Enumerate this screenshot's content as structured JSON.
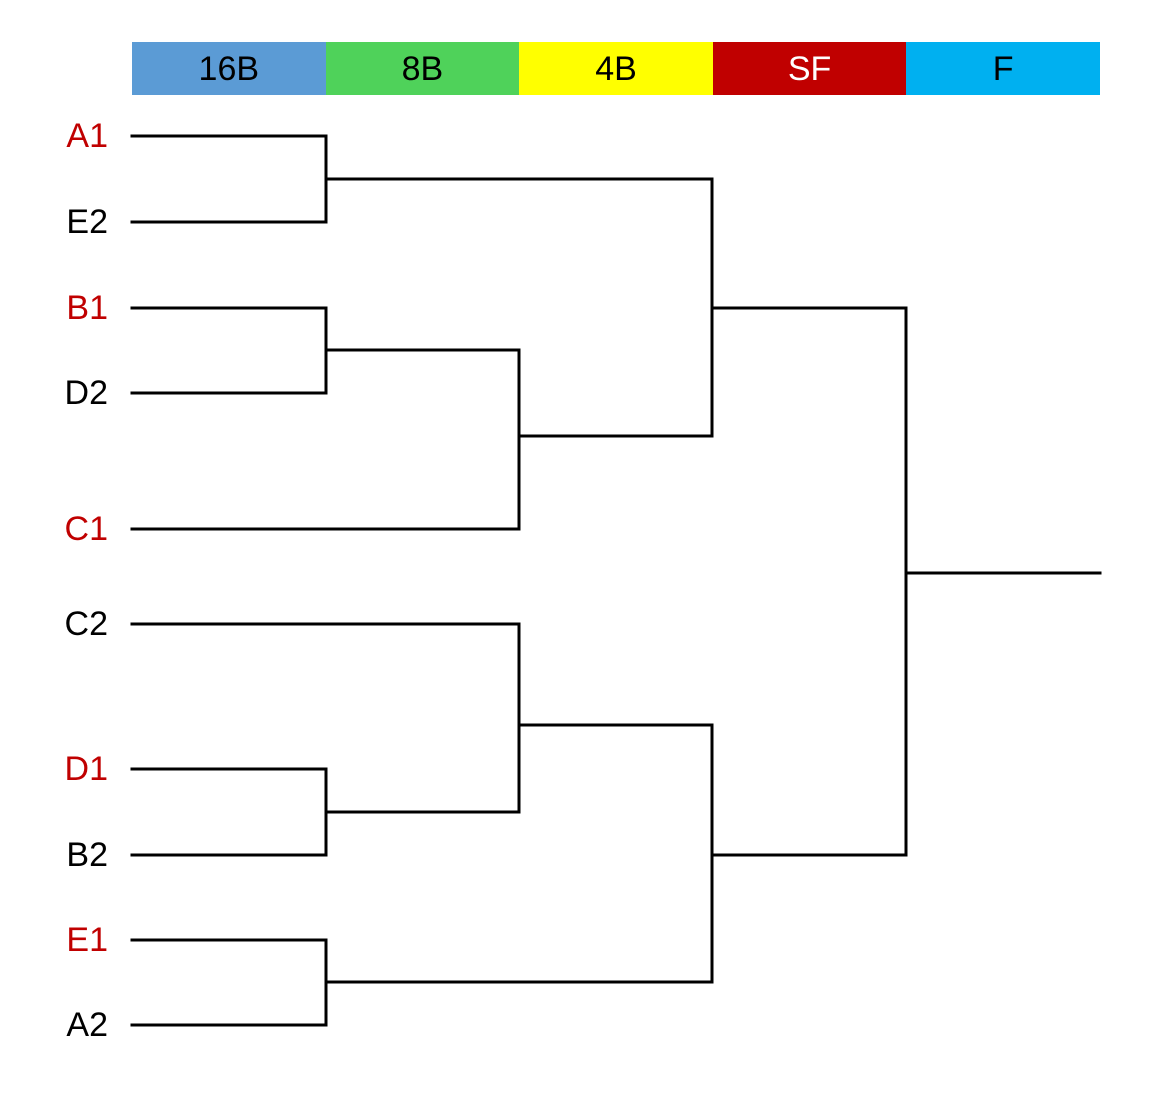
{
  "rounds": [
    {
      "label": "16B",
      "bg": "#5b9bd5",
      "fg": "#000000"
    },
    {
      "label": "8B",
      "bg": "#4fd25a",
      "fg": "#000000"
    },
    {
      "label": "4B",
      "bg": "#ffff00",
      "fg": "#000000"
    },
    {
      "label": "SF",
      "bg": "#c00000",
      "fg": "#ffffff"
    },
    {
      "label": "F",
      "bg": "#00b0f0",
      "fg": "#000000"
    }
  ],
  "seeds": [
    {
      "label": "A1",
      "color": "#c00000"
    },
    {
      "label": "E2",
      "color": "#000000"
    },
    {
      "label": "B1",
      "color": "#c00000"
    },
    {
      "label": "D2",
      "color": "#000000"
    },
    {
      "label": "C1",
      "color": "#c00000"
    },
    {
      "label": "C2",
      "color": "#000000"
    },
    {
      "label": "D1",
      "color": "#c00000"
    },
    {
      "label": "B2",
      "color": "#000000"
    },
    {
      "label": "E1",
      "color": "#c00000"
    },
    {
      "label": "A2",
      "color": "#000000"
    }
  ],
  "line_color": "#000000"
}
